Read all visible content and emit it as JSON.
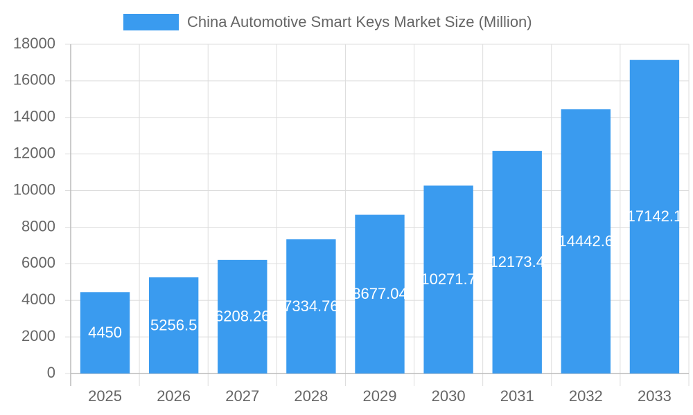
{
  "chart_data": {
    "type": "bar",
    "categories": [
      "2025",
      "2026",
      "2027",
      "2028",
      "2029",
      "2030",
      "2031",
      "2032",
      "2033"
    ],
    "series": [
      {
        "name": "China Automotive Smart Keys Market Size (Million)",
        "color": "#3a9bef",
        "values": [
          4450,
          5256.5,
          6208.26,
          7334.76,
          8677.04,
          10271.7,
          12173.4,
          14442.6,
          17142.1
        ]
      }
    ],
    "ylim": [
      0,
      18000
    ],
    "yticks": [
      0,
      2000,
      4000,
      6000,
      8000,
      10000,
      12000,
      14000,
      16000,
      18000
    ],
    "grid": true,
    "legend": "top"
  }
}
